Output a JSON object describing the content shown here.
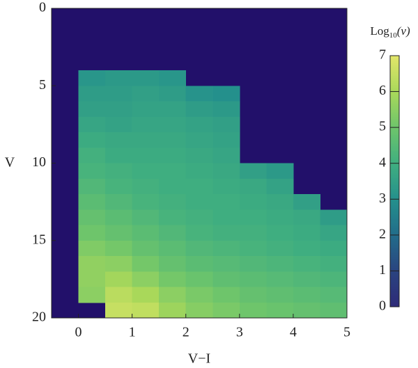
{
  "chart_data": {
    "type": "heatmap",
    "xlabel": "V−I",
    "ylabel": "V",
    "colorbar_title": {
      "base": "Log",
      "sub": "10",
      "arg": "(ν)"
    },
    "xlim": [
      -0.5,
      5
    ],
    "ylim": [
      20,
      0
    ],
    "xticks": [
      0,
      1,
      2,
      3,
      4,
      5
    ],
    "yticks": [
      0,
      5,
      10,
      15,
      20
    ],
    "x_bins": [
      -0.5,
      0,
      0.5,
      1,
      1.5,
      2,
      2.5,
      3,
      3.5,
      4,
      4.5,
      5
    ],
    "y_bins": [
      0,
      1,
      2,
      3,
      4,
      5,
      6,
      7,
      8,
      9,
      10,
      11,
      12,
      13,
      14,
      15,
      16,
      17,
      18,
      19,
      20
    ],
    "zlim": [
      0,
      7
    ],
    "zticks": [
      0,
      1,
      2,
      3,
      4,
      5,
      6,
      7
    ],
    "background": "#22106a",
    "colormap": [
      "#2e2a78",
      "#2a4480",
      "#226c8a",
      "#24908c",
      "#3fae80",
      "#6ec56b",
      "#a9d85a",
      "#e2e66a"
    ],
    "z": [
      [
        null,
        null,
        null,
        null,
        null,
        null,
        null,
        null,
        null,
        null,
        null
      ],
      [
        null,
        null,
        null,
        null,
        null,
        null,
        null,
        null,
        null,
        null,
        null
      ],
      [
        null,
        null,
        null,
        null,
        null,
        null,
        null,
        null,
        null,
        null,
        null
      ],
      [
        null,
        null,
        null,
        null,
        null,
        null,
        null,
        null,
        null,
        null,
        null
      ],
      [
        null,
        3.2,
        3.3,
        3.3,
        3.2,
        null,
        null,
        null,
        null,
        null,
        null
      ],
      [
        null,
        3.4,
        3.4,
        3.5,
        3.4,
        3.1,
        3.0,
        null,
        null,
        null,
        null
      ],
      [
        null,
        3.5,
        3.5,
        3.6,
        3.6,
        3.4,
        3.3,
        null,
        null,
        null,
        null
      ],
      [
        null,
        3.7,
        3.6,
        3.7,
        3.7,
        3.6,
        3.5,
        null,
        null,
        null,
        null
      ],
      [
        null,
        3.9,
        3.8,
        3.8,
        3.8,
        3.7,
        3.6,
        null,
        null,
        null,
        null
      ],
      [
        null,
        4.1,
        3.9,
        3.9,
        3.9,
        3.8,
        3.7,
        null,
        null,
        null,
        null
      ],
      [
        null,
        4.2,
        4.1,
        4.0,
        4.0,
        3.9,
        3.8,
        3.5,
        3.3,
        null,
        null
      ],
      [
        null,
        4.4,
        4.2,
        4.1,
        4.0,
        4.0,
        3.9,
        3.8,
        3.6,
        null,
        null
      ],
      [
        null,
        4.6,
        4.4,
        4.2,
        4.1,
        4.0,
        4.0,
        3.9,
        3.8,
        3.5,
        null
      ],
      [
        null,
        4.8,
        4.6,
        4.4,
        4.2,
        4.1,
        4.0,
        4.0,
        3.9,
        3.8,
        3.4
      ],
      [
        null,
        5.0,
        4.8,
        4.6,
        4.4,
        4.2,
        4.1,
        4.1,
        4.0,
        3.9,
        3.7
      ],
      [
        null,
        5.3,
        5.1,
        4.8,
        4.6,
        4.4,
        4.3,
        4.2,
        4.1,
        4.0,
        3.9
      ],
      [
        null,
        5.6,
        5.5,
        5.1,
        4.8,
        4.6,
        4.5,
        4.4,
        4.3,
        4.2,
        4.1
      ],
      [
        null,
        5.6,
        5.9,
        5.5,
        5.1,
        4.9,
        4.7,
        4.6,
        4.5,
        4.4,
        4.3
      ],
      [
        null,
        5.5,
        6.3,
        6.0,
        5.5,
        5.2,
        5.0,
        4.8,
        4.7,
        4.6,
        4.5
      ],
      [
        null,
        null,
        6.5,
        6.4,
        5.8,
        5.4,
        5.2,
        5.0,
        4.9,
        4.8,
        4.7
      ]
    ]
  }
}
